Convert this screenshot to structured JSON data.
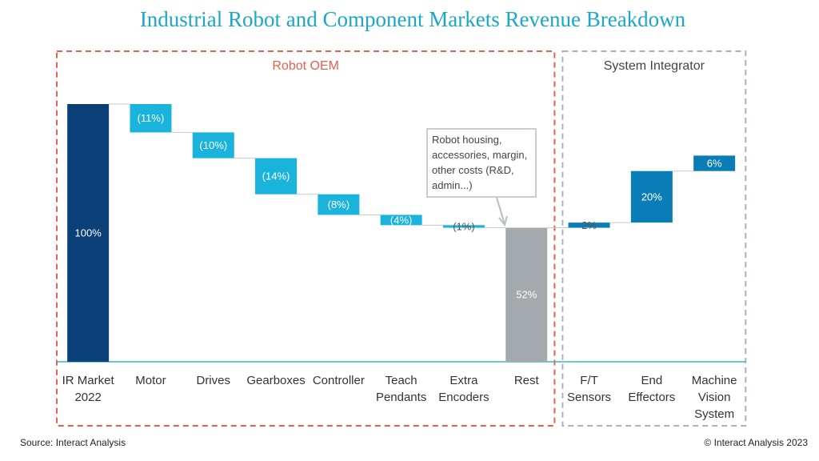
{
  "chart_data": {
    "type": "waterfall",
    "title": "Industrial Robot and Component Markets Revenue Breakdown",
    "categories": [
      "IR Market\n2022",
      "Motor",
      "Drives",
      "Gearboxes",
      "Controller",
      "Teach\nPendants",
      "Extra\nEncoders",
      "Rest",
      "F/T\nSensors",
      "End\nEffectors",
      "Machine\nVision\nSystem"
    ],
    "values": [
      100,
      -11,
      -10,
      -14,
      -8,
      -4,
      -1,
      52,
      2,
      20,
      6
    ],
    "value_labels": [
      "100%",
      "(11%)",
      "(10%)",
      "(14%)",
      "(8%)",
      "(4%)",
      "(1%)",
      "52%",
      "2%",
      "20%",
      "6%"
    ],
    "bar_kinds": [
      "total",
      "delta",
      "delta",
      "delta",
      "delta",
      "delta",
      "delta",
      "total",
      "delta",
      "delta",
      "delta"
    ],
    "colors": [
      "#0b3f78",
      "#19b3dc",
      "#19b3dc",
      "#19b3dc",
      "#19b3dc",
      "#19b3dc",
      "#19b3dc",
      "#a3a9ad",
      "#0b7db6",
      "#0b7db6",
      "#0b7db6"
    ],
    "ylim": [
      0,
      100
    ],
    "groups": [
      {
        "name": "Robot OEM",
        "color": "#e8604c",
        "size": 8
      },
      {
        "name": "System Integrator",
        "color": "#a8b4bc",
        "size": 3
      }
    ],
    "annotation": "Robot housing,\naccessories, margin,\nother costs (R&D,\nadmin...)",
    "source": "Source: Interact Analysis",
    "copyright": "© Interact Analysis 2023"
  }
}
